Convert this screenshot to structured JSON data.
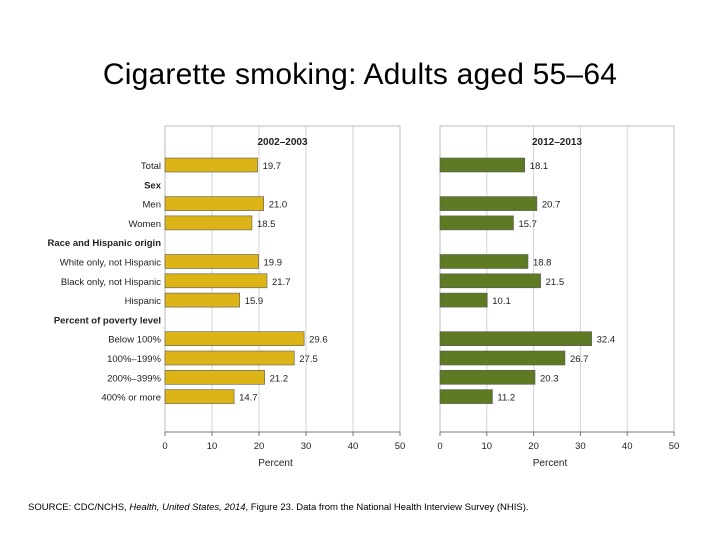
{
  "title": "Cigarette smoking: Adults aged 55–64",
  "source": {
    "prefix": "SOURCE: CDC/NCHS, ",
    "publication": "Health, United States, 2014",
    "suffix": ", Figure 23. Data from the National Health Interview Survey (NHIS)."
  },
  "chart_data": {
    "type": "bar",
    "orientation": "horizontal",
    "xlabel": "Percent",
    "xlim": [
      0,
      50
    ],
    "xticks": [
      0,
      10,
      20,
      30,
      40,
      50
    ],
    "grid": true,
    "rows": [
      {
        "label": "Total",
        "kind": "item",
        "index": 0
      },
      {
        "label": "Sex",
        "kind": "group"
      },
      {
        "label": "Men",
        "kind": "item",
        "index": 1
      },
      {
        "label": "Women",
        "kind": "item",
        "index": 2
      },
      {
        "label": "Race and Hispanic origin",
        "kind": "group"
      },
      {
        "label": "White only, not Hispanic",
        "kind": "item",
        "index": 3
      },
      {
        "label": "Black only, not Hispanic",
        "kind": "item",
        "index": 4
      },
      {
        "label": "Hispanic",
        "kind": "item",
        "index": 5
      },
      {
        "label": "Percent of poverty level",
        "kind": "group"
      },
      {
        "label": "Below 100%",
        "kind": "item",
        "index": 6
      },
      {
        "label": "100%–199%",
        "kind": "item",
        "index": 7
      },
      {
        "label": "200%–399%",
        "kind": "item",
        "index": 8
      },
      {
        "label": "400% or more",
        "kind": "item",
        "index": 9
      }
    ],
    "series": [
      {
        "name": "2002–2003",
        "color": "#dcb418",
        "values": [
          19.7,
          21.0,
          18.5,
          19.9,
          21.7,
          15.9,
          29.6,
          27.5,
          21.2,
          14.7
        ]
      },
      {
        "name": "2012–2013",
        "color": "#5e7a22",
        "values": [
          18.1,
          20.7,
          15.7,
          18.8,
          21.5,
          10.1,
          32.4,
          26.7,
          20.3,
          11.2
        ]
      }
    ]
  }
}
